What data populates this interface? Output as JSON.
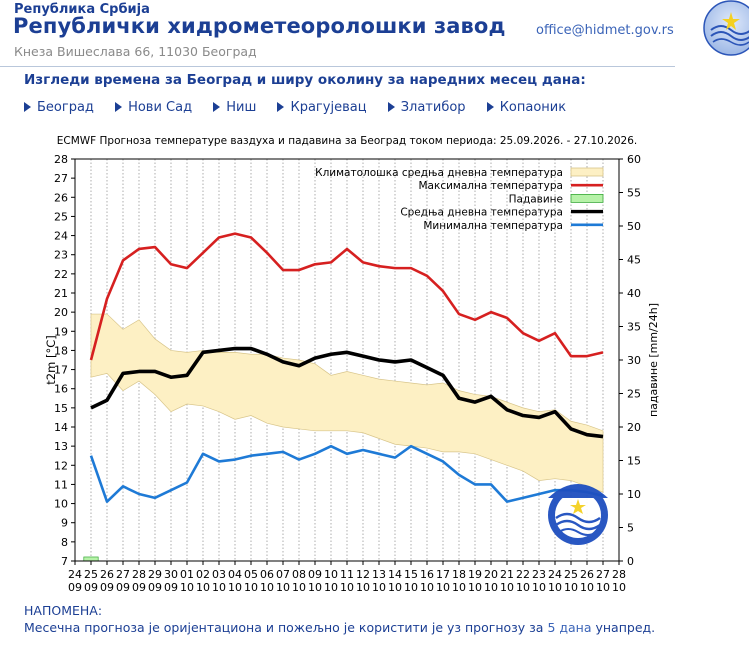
{
  "header": {
    "republic": "Република Србија",
    "institute": "Републички хидрометеоролошки завод",
    "address": "Кнеза Вишеслава 66, 11030 Београд",
    "email": "office@hidmet.gov.rs"
  },
  "subtitle": "Изгледи времена за Београд и ширу околину за наредних месец дана:",
  "cities": [
    "Београд",
    "Нови Сад",
    "Ниш",
    "Крагујевац",
    "Златибор",
    "Копаоник"
  ],
  "chart_data": {
    "type": "line",
    "title": "ECMWF Прогноза температуре ваздуха и падавина за Београд током периода: 25.09.2026. - 27.10.2026.",
    "xlabel": "",
    "ylabel_left": "t2m [°C]",
    "ylabel_right": "падавине [mm/24h]",
    "ylim_left": [
      7,
      28
    ],
    "ylim_right": [
      0,
      60
    ],
    "grid": "vertical-dashed",
    "legend_position": "top-right",
    "x_ticks": [
      {
        "day": "24",
        "month": "09"
      },
      {
        "day": "25",
        "month": "09"
      },
      {
        "day": "26",
        "month": "09"
      },
      {
        "day": "27",
        "month": "09"
      },
      {
        "day": "28",
        "month": "09"
      },
      {
        "day": "29",
        "month": "09"
      },
      {
        "day": "30",
        "month": "09"
      },
      {
        "day": "01",
        "month": "10"
      },
      {
        "day": "02",
        "month": "10"
      },
      {
        "day": "03",
        "month": "10"
      },
      {
        "day": "04",
        "month": "10"
      },
      {
        "day": "05",
        "month": "10"
      },
      {
        "day": "06",
        "month": "10"
      },
      {
        "day": "07",
        "month": "10"
      },
      {
        "day": "08",
        "month": "10"
      },
      {
        "day": "09",
        "month": "10"
      },
      {
        "day": "10",
        "month": "10"
      },
      {
        "day": "11",
        "month": "10"
      },
      {
        "day": "12",
        "month": "10"
      },
      {
        "day": "13",
        "month": "10"
      },
      {
        "day": "14",
        "month": "10"
      },
      {
        "day": "15",
        "month": "10"
      },
      {
        "day": "16",
        "month": "10"
      },
      {
        "day": "17",
        "month": "10"
      },
      {
        "day": "18",
        "month": "10"
      },
      {
        "day": "19",
        "month": "10"
      },
      {
        "day": "20",
        "month": "10"
      },
      {
        "day": "21",
        "month": "10"
      },
      {
        "day": "22",
        "month": "10"
      },
      {
        "day": "23",
        "month": "10"
      },
      {
        "day": "24",
        "month": "10"
      },
      {
        "day": "25",
        "month": "10"
      },
      {
        "day": "26",
        "month": "10"
      },
      {
        "day": "27",
        "month": "10"
      },
      {
        "day": "28",
        "month": "10"
      }
    ],
    "y_ticks_left": [
      7,
      8,
      9,
      10,
      11,
      12,
      13,
      14,
      15,
      16,
      17,
      18,
      19,
      20,
      21,
      22,
      23,
      24,
      25,
      26,
      27,
      28
    ],
    "y_ticks_right": [
      0,
      5,
      10,
      15,
      20,
      25,
      30,
      35,
      40,
      45,
      50,
      55,
      60
    ],
    "dates": [
      "25.09.",
      "26.09.",
      "27.09.",
      "28.09.",
      "29.09.",
      "30.09.",
      "01.10.",
      "02.10.",
      "03.10.",
      "04.10.",
      "05.10.",
      "06.10.",
      "07.10.",
      "08.10.",
      "09.10.",
      "10.10.",
      "11.10.",
      "12.10.",
      "13.10.",
      "14.10.",
      "15.10.",
      "16.10.",
      "17.10.",
      "18.10.",
      "19.10.",
      "20.10.",
      "21.10.",
      "22.10.",
      "23.10.",
      "24.10.",
      "25.10.",
      "26.10.",
      "27.10."
    ],
    "series": [
      {
        "name": "Климатолошка средња дневна температура",
        "type": "band",
        "color": "#fdf0c4",
        "upper": [
          19.9,
          19.9,
          19.1,
          19.6,
          18.6,
          18.0,
          17.9,
          18.0,
          17.9,
          17.9,
          17.8,
          17.8,
          17.6,
          17.5,
          17.3,
          16.7,
          16.9,
          16.7,
          16.5,
          16.4,
          16.3,
          16.2,
          16.3,
          15.9,
          15.7,
          15.6,
          15.3,
          15.0,
          14.8,
          14.9,
          14.3,
          14.1,
          13.8
        ],
        "lower": [
          16.6,
          16.8,
          15.9,
          16.4,
          15.7,
          14.8,
          15.2,
          15.1,
          14.8,
          14.4,
          14.6,
          14.2,
          14.0,
          13.9,
          13.8,
          13.8,
          13.8,
          13.7,
          13.4,
          13.1,
          13.0,
          12.9,
          12.7,
          12.7,
          12.6,
          12.3,
          12.0,
          11.7,
          11.2,
          11.3,
          11.2,
          10.9,
          10.6
        ]
      },
      {
        "name": "Максимална температура",
        "color": "#d62020",
        "values": [
          17.5,
          20.7,
          22.7,
          23.3,
          23.4,
          22.5,
          22.3,
          23.1,
          23.9,
          24.1,
          23.9,
          23.1,
          22.2,
          22.2,
          22.5,
          22.6,
          23.3,
          22.6,
          22.4,
          22.3,
          22.3,
          21.9,
          21.1,
          19.9,
          19.6,
          20.0,
          19.7,
          18.9,
          18.5,
          18.9,
          17.7,
          17.7,
          17.9
        ]
      },
      {
        "name": "Падавине",
        "type": "bar",
        "color": "#b6f2a8",
        "values": [
          0.6,
          0,
          0,
          0,
          0,
          0,
          0,
          0,
          0,
          0,
          0,
          0,
          0,
          0,
          0,
          0,
          0,
          0,
          0,
          0,
          0,
          0,
          0,
          0,
          0,
          0,
          0,
          0,
          0,
          0,
          0,
          0,
          0
        ]
      },
      {
        "name": "Средња дневна температура",
        "color": "#000000",
        "values": [
          15.0,
          15.4,
          16.8,
          16.9,
          16.9,
          16.6,
          16.7,
          17.9,
          18.0,
          18.1,
          18.1,
          17.8,
          17.4,
          17.2,
          17.6,
          17.8,
          17.9,
          17.7,
          17.5,
          17.4,
          17.5,
          17.1,
          16.7,
          15.5,
          15.3,
          15.6,
          14.9,
          14.6,
          14.5,
          14.8,
          13.9,
          13.6,
          13.5
        ]
      },
      {
        "name": "Минимална температура",
        "color": "#1e7ad6",
        "values": [
          12.5,
          10.1,
          10.9,
          10.5,
          10.3,
          10.7,
          11.1,
          12.6,
          12.2,
          12.3,
          12.5,
          12.6,
          12.7,
          12.3,
          12.6,
          13.0,
          12.6,
          12.8,
          12.6,
          12.4,
          13.0,
          12.6,
          12.2,
          11.5,
          11.0,
          11.0,
          10.1,
          10.3,
          10.5,
          10.7,
          10.7,
          10.6,
          10.4
        ]
      }
    ]
  },
  "note": {
    "title": "НАПОМЕНА:",
    "text_before": "Месечна прогноза је оријентациона и пожељно је користити је уз прогнозу за ",
    "link": "5 дана",
    "text_after": " унапред."
  }
}
